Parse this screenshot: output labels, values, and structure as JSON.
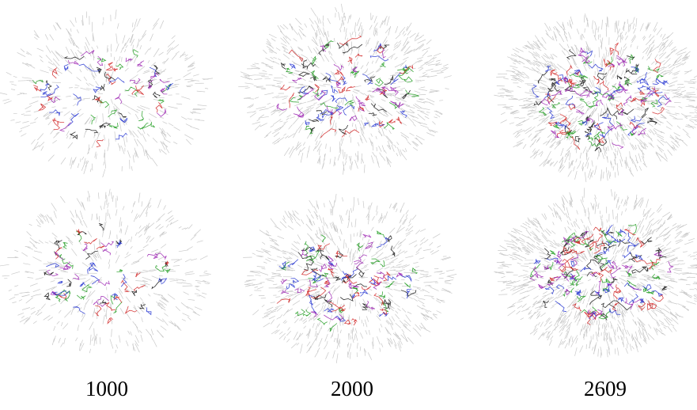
{
  "labels": [
    "1000",
    "2000",
    "2609"
  ]
}
